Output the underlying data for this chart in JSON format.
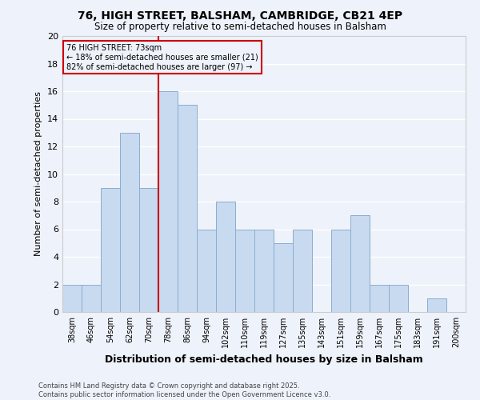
{
  "title1": "76, HIGH STREET, BALSHAM, CAMBRIDGE, CB21 4EP",
  "title2": "Size of property relative to semi-detached houses in Balsham",
  "xlabel": "Distribution of semi-detached houses by size in Balsham",
  "ylabel": "Number of semi-detached properties",
  "categories": [
    "38sqm",
    "46sqm",
    "54sqm",
    "62sqm",
    "70sqm",
    "78sqm",
    "86sqm",
    "94sqm",
    "102sqm",
    "110sqm",
    "119sqm",
    "127sqm",
    "135sqm",
    "143sqm",
    "151sqm",
    "159sqm",
    "167sqm",
    "175sqm",
    "183sqm",
    "191sqm",
    "200sqm"
  ],
  "values": [
    2,
    2,
    9,
    13,
    9,
    16,
    15,
    6,
    8,
    6,
    6,
    5,
    6,
    0,
    6,
    7,
    2,
    2,
    0,
    1,
    0
  ],
  "bar_color": "#c8daf0",
  "bar_edge_color": "#8aaecc",
  "vline_x": 4.5,
  "vline_color": "#cc0000",
  "annotation_title": "76 HIGH STREET: 73sqm",
  "annotation_line1": "← 18% of semi-detached houses are smaller (21)",
  "annotation_line2": "82% of semi-detached houses are larger (97) →",
  "annotation_box_color": "#cc0000",
  "ylim": [
    0,
    20
  ],
  "yticks": [
    0,
    2,
    4,
    6,
    8,
    10,
    12,
    14,
    16,
    18,
    20
  ],
  "footer1": "Contains HM Land Registry data © Crown copyright and database right 2025.",
  "footer2": "Contains public sector information licensed under the Open Government Licence v3.0.",
  "bg_color": "#eef2fa",
  "grid_color": "#ffffff"
}
